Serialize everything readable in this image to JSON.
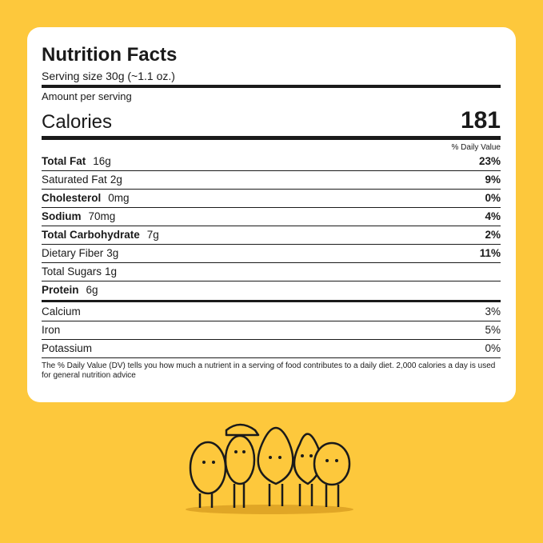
{
  "title": "Nutrition Facts",
  "serving_size": "Serving size 30g (~1.1 oz.)",
  "amount_per_serving": "Amount per serving",
  "calories": {
    "label": "Calories",
    "value": "181"
  },
  "dv_header": "% Daily Value",
  "rows": [
    {
      "name": "Total Fat",
      "amount": "16g",
      "dv": "23%",
      "bold": true
    },
    {
      "name": "Saturated Fat",
      "amount": "2g",
      "dv": "9%",
      "bold": false
    },
    {
      "name": "Cholesterol",
      "amount": "0mg",
      "dv": "0%",
      "bold": true
    },
    {
      "name": "Sodium",
      "amount": "70mg",
      "dv": "4%",
      "bold": true
    },
    {
      "name": "Total Carbohydrate",
      "amount": "7g",
      "dv": "2%",
      "bold": true
    },
    {
      "name": "Dietary Fiber",
      "amount": "3g",
      "dv": "11%",
      "bold": false
    },
    {
      "name": "Total Sugars",
      "amount": "1g",
      "bold": false
    },
    {
      "name": "Protein",
      "amount": "6g",
      "bold": true
    }
  ],
  "minerals": [
    {
      "name": "Calcium",
      "dv": "3%"
    },
    {
      "name": "Iron",
      "dv": "5%"
    },
    {
      "name": "Potassium",
      "dv": "0%"
    }
  ],
  "footnote": "The % Daily Value (DV) tells you how much a nutrient in a serving of food contributes to a daily diet. 2,000 calories a day is used for general nutrition advice"
}
